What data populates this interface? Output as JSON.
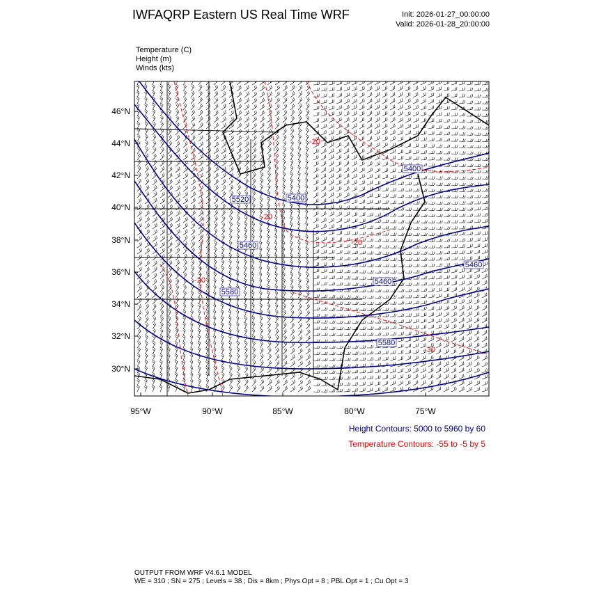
{
  "header": {
    "title": "IWFAQRP Eastern US Real Time WRF",
    "init": "Init: 2026-01-27_00:00:00",
    "valid": "Valid: 2026-01-28_20:00:00"
  },
  "fields": [
    "Temperature   (C)",
    "Height   (m)",
    "Winds   (kts)"
  ],
  "map": {
    "lat_labels": [
      "46°N",
      "44°N",
      "42°N",
      "40°N",
      "38°N",
      "36°N",
      "34°N",
      "32°N",
      "30°N"
    ],
    "lon_labels": [
      "95°W",
      "90°W",
      "85°W",
      "80°W",
      "75°W"
    ],
    "height_labels": [
      "5520",
      "5400",
      "5460",
      "5580",
      "5460",
      "5400",
      "5580",
      "5460"
    ],
    "temp_labels": [
      "-30",
      "-20",
      "-20",
      "-20",
      "-20"
    ]
  },
  "contour_info": {
    "height": "Height Contours: 5000 to 5960 by 60",
    "temperature": "Temperature Contours: -55 to -5 by 5"
  },
  "footer": {
    "line1": "OUTPUT FROM WRF V4.6.1 MODEL",
    "line2": "WE = 310 ; SN = 275 ; Levels = 38 ; Dis = 8km ; Phys Opt = 8 ; PBL Opt = 1 ; Cu Opt = 3"
  }
}
